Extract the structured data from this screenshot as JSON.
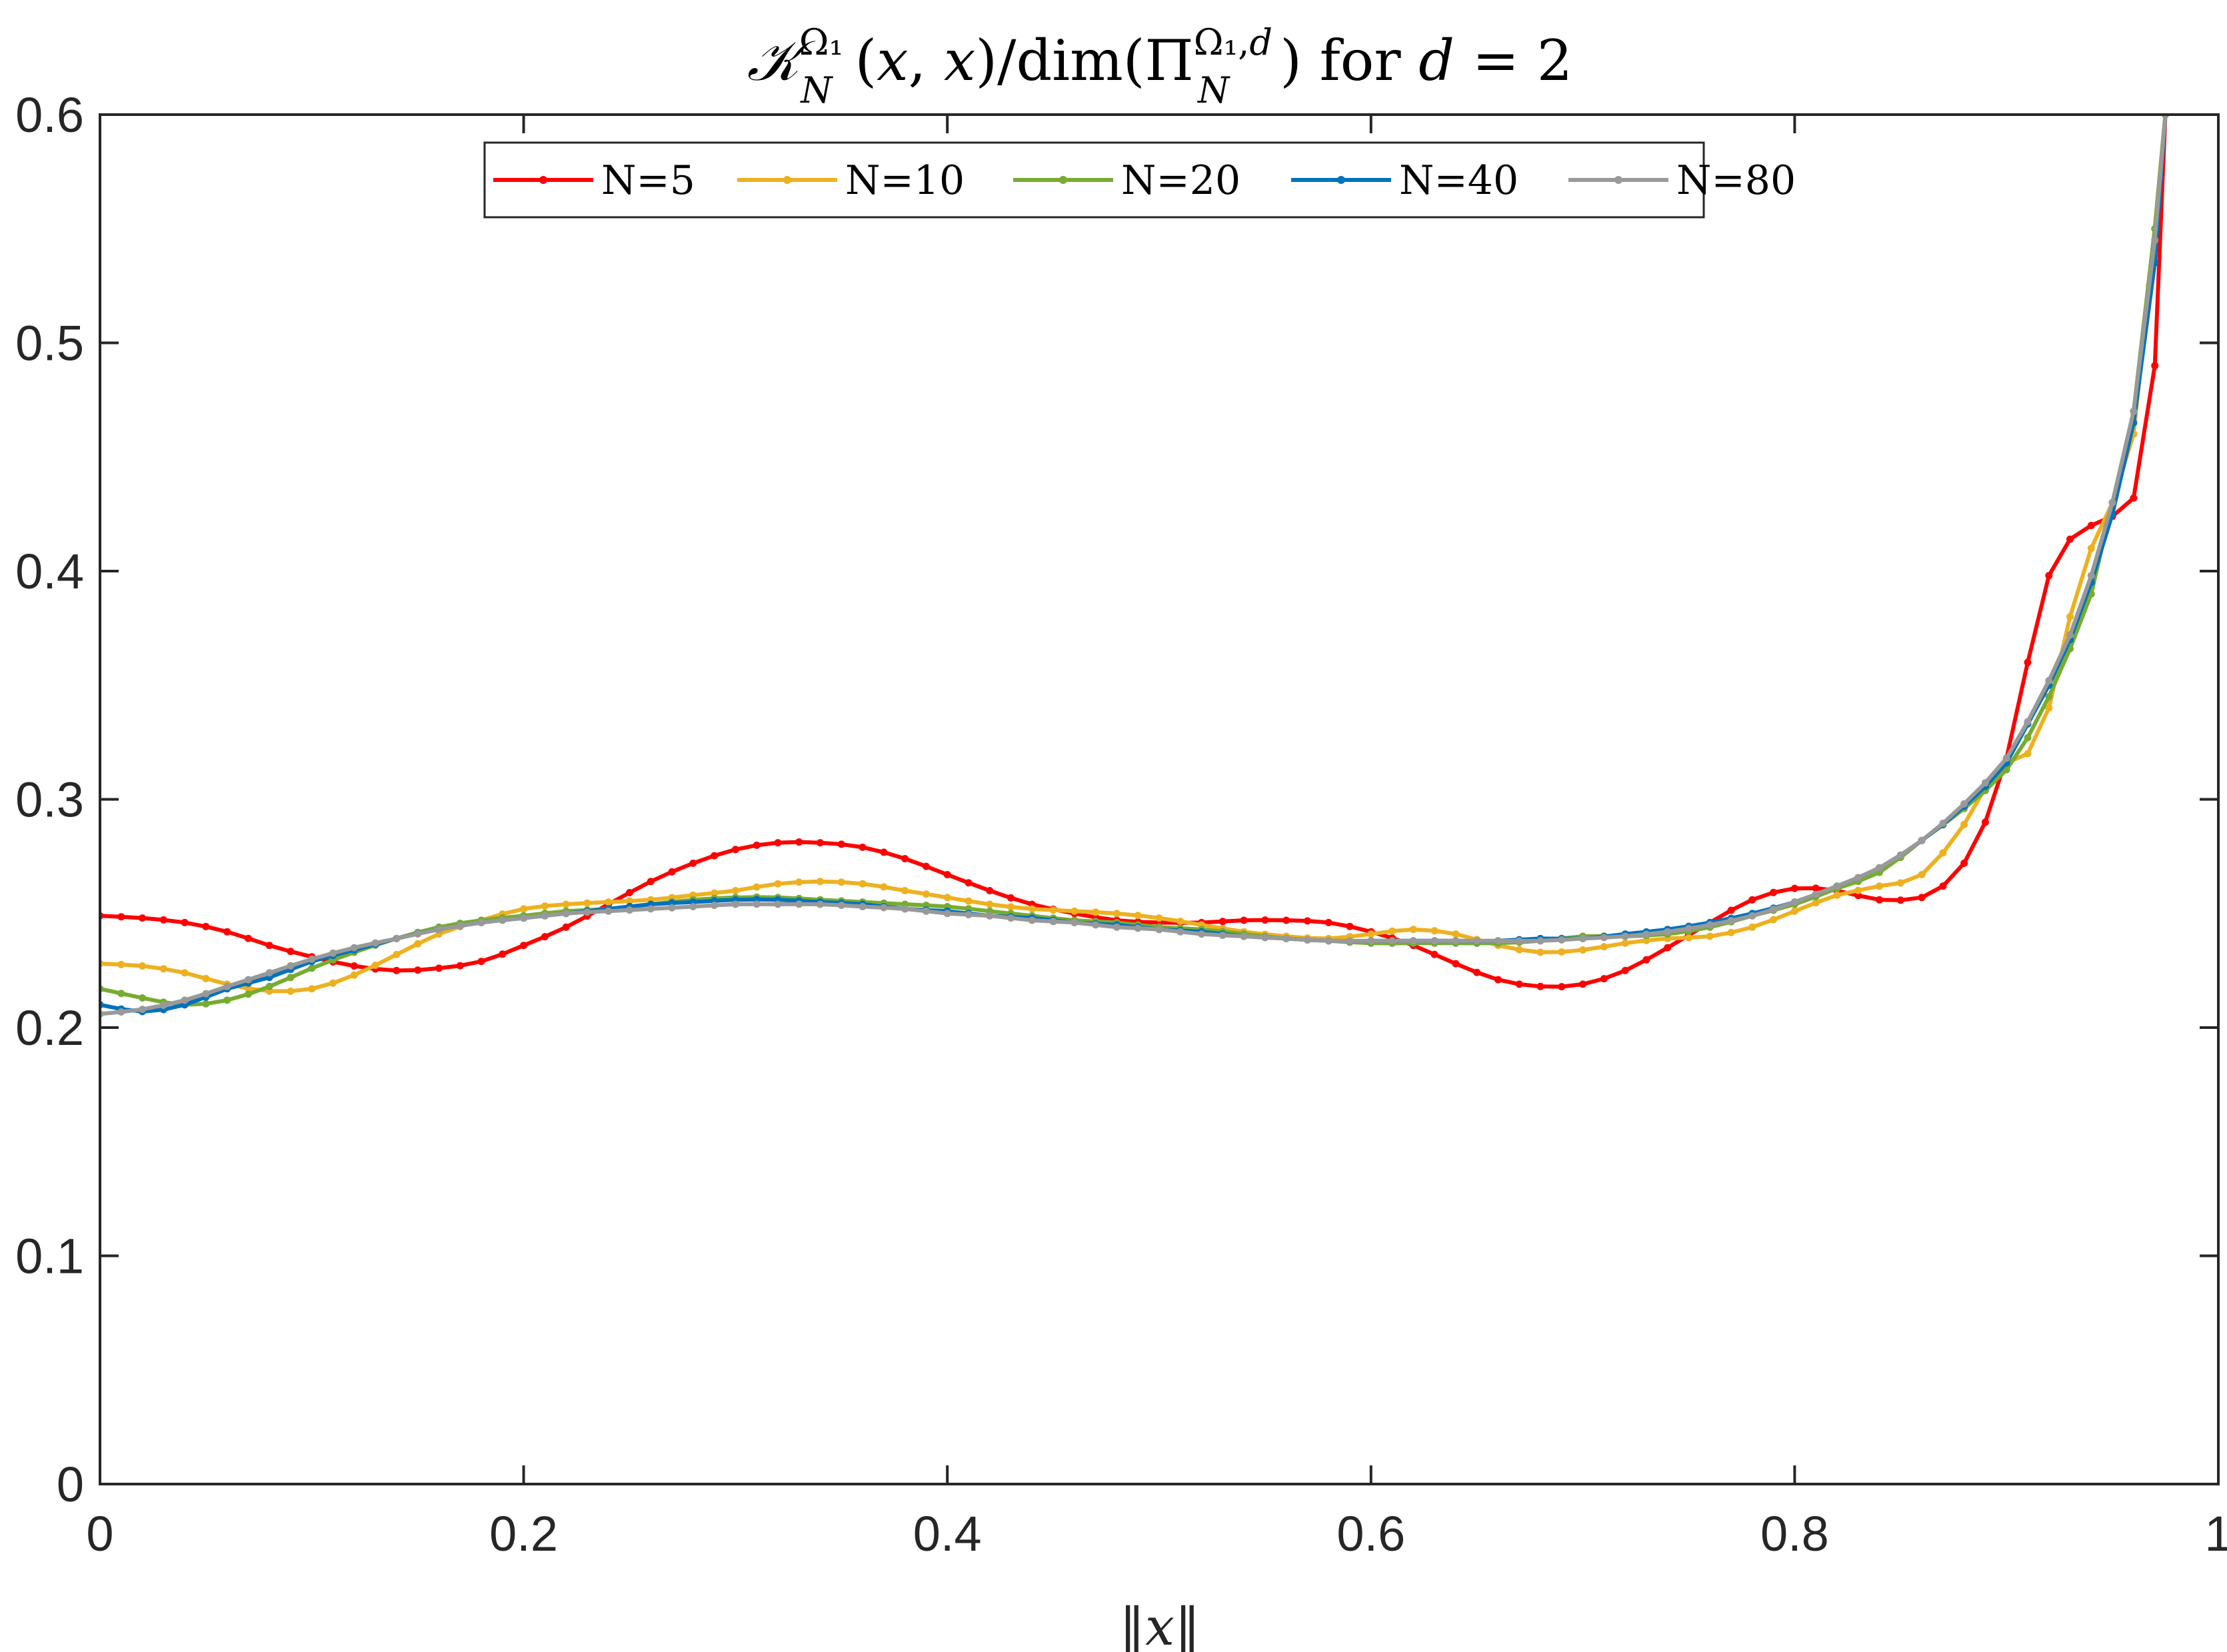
{
  "chart_data": {
    "type": "line",
    "title": "𝒦_N^{Ω₁}(x, x) / dim(Π_N^{Ω₁,d}) for d = 2",
    "xlabel": "‖x‖",
    "ylabel": "",
    "xlim": [
      0,
      1
    ],
    "ylim": [
      0,
      0.6
    ],
    "xticks": [
      0,
      0.2,
      0.4,
      0.6,
      0.8,
      1
    ],
    "xtick_labels": [
      "0",
      "0.2",
      "0.4",
      "0.6",
      "0.8",
      "1"
    ],
    "yticks": [
      0,
      0.1,
      0.2,
      0.3,
      0.4,
      0.5,
      0.6
    ],
    "ytick_labels": [
      "0",
      "0.1",
      "0.2",
      "0.3",
      "0.4",
      "0.5",
      "0.6"
    ],
    "grid": false,
    "legend": {
      "placement": "top-center",
      "orientation": "horizontal"
    },
    "series": [
      {
        "name": "N=5",
        "color": "#FF0000",
        "points": [
          [
            0,
            0.249
          ],
          [
            0.02,
            0.248
          ],
          [
            0.04,
            0.246
          ],
          [
            0.06,
            0.242
          ],
          [
            0.08,
            0.236
          ],
          [
            0.1,
            0.231
          ],
          [
            0.12,
            0.227
          ],
          [
            0.14,
            0.225
          ],
          [
            0.16,
            0.226
          ],
          [
            0.18,
            0.229
          ],
          [
            0.2,
            0.236
          ],
          [
            0.22,
            0.244
          ],
          [
            0.24,
            0.254
          ],
          [
            0.26,
            0.264
          ],
          [
            0.28,
            0.272
          ],
          [
            0.3,
            0.278
          ],
          [
            0.32,
            0.281
          ],
          [
            0.34,
            0.281
          ],
          [
            0.36,
            0.279
          ],
          [
            0.38,
            0.274
          ],
          [
            0.4,
            0.267
          ],
          [
            0.42,
            0.26
          ],
          [
            0.44,
            0.254
          ],
          [
            0.46,
            0.25
          ],
          [
            0.48,
            0.247
          ],
          [
            0.5,
            0.246
          ],
          [
            0.52,
            0.246
          ],
          [
            0.54,
            0.247
          ],
          [
            0.56,
            0.247
          ],
          [
            0.58,
            0.246
          ],
          [
            0.6,
            0.242
          ],
          [
            0.62,
            0.236
          ],
          [
            0.64,
            0.228
          ],
          [
            0.66,
            0.221
          ],
          [
            0.68,
            0.218
          ],
          [
            0.7,
            0.219
          ],
          [
            0.72,
            0.225
          ],
          [
            0.74,
            0.235
          ],
          [
            0.76,
            0.246
          ],
          [
            0.78,
            0.256
          ],
          [
            0.8,
            0.261
          ],
          [
            0.82,
            0.26
          ],
          [
            0.84,
            0.256
          ],
          [
            0.86,
            0.257
          ],
          [
            0.87,
            0.262
          ],
          [
            0.88,
            0.272
          ],
          [
            0.89,
            0.29
          ],
          [
            0.9,
            0.318
          ],
          [
            0.91,
            0.36
          ],
          [
            0.92,
            0.398
          ],
          [
            0.93,
            0.414
          ],
          [
            0.94,
            0.42
          ],
          [
            0.95,
            0.424
          ],
          [
            0.96,
            0.432
          ],
          [
            0.97,
            0.49
          ],
          [
            0.975,
            0.6
          ]
        ]
      },
      {
        "name": "N=10",
        "color": "#EDB120",
        "points": [
          [
            0,
            0.228
          ],
          [
            0.02,
            0.227
          ],
          [
            0.04,
            0.224
          ],
          [
            0.06,
            0.219
          ],
          [
            0.08,
            0.216
          ],
          [
            0.1,
            0.217
          ],
          [
            0.12,
            0.223
          ],
          [
            0.14,
            0.232
          ],
          [
            0.16,
            0.241
          ],
          [
            0.18,
            0.247
          ],
          [
            0.2,
            0.252
          ],
          [
            0.22,
            0.254
          ],
          [
            0.24,
            0.255
          ],
          [
            0.26,
            0.256
          ],
          [
            0.28,
            0.258
          ],
          [
            0.3,
            0.26
          ],
          [
            0.32,
            0.263
          ],
          [
            0.34,
            0.264
          ],
          [
            0.36,
            0.263
          ],
          [
            0.38,
            0.26
          ],
          [
            0.4,
            0.257
          ],
          [
            0.42,
            0.254
          ],
          [
            0.44,
            0.252
          ],
          [
            0.46,
            0.251
          ],
          [
            0.48,
            0.25
          ],
          [
            0.5,
            0.248
          ],
          [
            0.52,
            0.245
          ],
          [
            0.54,
            0.242
          ],
          [
            0.56,
            0.24
          ],
          [
            0.58,
            0.239
          ],
          [
            0.6,
            0.241
          ],
          [
            0.62,
            0.243
          ],
          [
            0.64,
            0.241
          ],
          [
            0.66,
            0.236
          ],
          [
            0.68,
            0.233
          ],
          [
            0.7,
            0.234
          ],
          [
            0.72,
            0.237
          ],
          [
            0.74,
            0.239
          ],
          [
            0.76,
            0.24
          ],
          [
            0.78,
            0.244
          ],
          [
            0.8,
            0.251
          ],
          [
            0.82,
            0.258
          ],
          [
            0.84,
            0.262
          ],
          [
            0.86,
            0.267
          ],
          [
            0.88,
            0.289
          ],
          [
            0.89,
            0.305
          ],
          [
            0.9,
            0.316
          ],
          [
            0.91,
            0.32
          ],
          [
            0.92,
            0.34
          ],
          [
            0.93,
            0.38
          ],
          [
            0.94,
            0.41
          ],
          [
            0.95,
            0.43
          ],
          [
            0.96,
            0.46
          ],
          [
            0.975,
            0.6
          ]
        ]
      },
      {
        "name": "N=20",
        "color": "#77AC30",
        "points": [
          [
            0,
            0.217
          ],
          [
            0.02,
            0.213
          ],
          [
            0.04,
            0.21
          ],
          [
            0.06,
            0.212
          ],
          [
            0.08,
            0.218
          ],
          [
            0.1,
            0.226
          ],
          [
            0.12,
            0.233
          ],
          [
            0.14,
            0.239
          ],
          [
            0.16,
            0.244
          ],
          [
            0.18,
            0.247
          ],
          [
            0.2,
            0.249
          ],
          [
            0.22,
            0.251
          ],
          [
            0.24,
            0.252
          ],
          [
            0.26,
            0.254
          ],
          [
            0.28,
            0.256
          ],
          [
            0.3,
            0.257
          ],
          [
            0.32,
            0.257
          ],
          [
            0.34,
            0.256
          ],
          [
            0.36,
            0.255
          ],
          [
            0.38,
            0.254
          ],
          [
            0.4,
            0.253
          ],
          [
            0.42,
            0.251
          ],
          [
            0.44,
            0.249
          ],
          [
            0.46,
            0.247
          ],
          [
            0.48,
            0.246
          ],
          [
            0.5,
            0.244
          ],
          [
            0.52,
            0.243
          ],
          [
            0.54,
            0.241
          ],
          [
            0.56,
            0.239
          ],
          [
            0.58,
            0.238
          ],
          [
            0.6,
            0.237
          ],
          [
            0.62,
            0.237
          ],
          [
            0.64,
            0.237
          ],
          [
            0.66,
            0.237
          ],
          [
            0.68,
            0.238
          ],
          [
            0.7,
            0.24
          ],
          [
            0.72,
            0.24
          ],
          [
            0.74,
            0.241
          ],
          [
            0.76,
            0.244
          ],
          [
            0.78,
            0.249
          ],
          [
            0.8,
            0.254
          ],
          [
            0.82,
            0.261
          ],
          [
            0.84,
            0.268
          ],
          [
            0.86,
            0.282
          ],
          [
            0.88,
            0.296
          ],
          [
            0.9,
            0.313
          ],
          [
            0.91,
            0.327
          ],
          [
            0.92,
            0.345
          ],
          [
            0.93,
            0.366
          ],
          [
            0.94,
            0.39
          ],
          [
            0.95,
            0.43
          ],
          [
            0.96,
            0.47
          ],
          [
            0.97,
            0.55
          ],
          [
            0.975,
            0.6
          ]
        ]
      },
      {
        "name": "N=40",
        "color": "#0072BD",
        "points": [
          [
            0,
            0.21
          ],
          [
            0.02,
            0.207
          ],
          [
            0.04,
            0.21
          ],
          [
            0.06,
            0.217
          ],
          [
            0.08,
            0.222
          ],
          [
            0.1,
            0.229
          ],
          [
            0.12,
            0.234
          ],
          [
            0.14,
            0.239
          ],
          [
            0.16,
            0.243
          ],
          [
            0.18,
            0.246
          ],
          [
            0.2,
            0.248
          ],
          [
            0.22,
            0.25
          ],
          [
            0.24,
            0.252
          ],
          [
            0.26,
            0.254
          ],
          [
            0.28,
            0.255
          ],
          [
            0.3,
            0.256
          ],
          [
            0.32,
            0.256
          ],
          [
            0.34,
            0.255
          ],
          [
            0.36,
            0.254
          ],
          [
            0.38,
            0.252
          ],
          [
            0.4,
            0.251
          ],
          [
            0.42,
            0.249
          ],
          [
            0.44,
            0.248
          ],
          [
            0.46,
            0.246
          ],
          [
            0.48,
            0.245
          ],
          [
            0.5,
            0.243
          ],
          [
            0.52,
            0.242
          ],
          [
            0.54,
            0.24
          ],
          [
            0.56,
            0.239
          ],
          [
            0.58,
            0.238
          ],
          [
            0.6,
            0.238
          ],
          [
            0.62,
            0.238
          ],
          [
            0.64,
            0.238
          ],
          [
            0.66,
            0.238
          ],
          [
            0.68,
            0.239
          ],
          [
            0.7,
            0.239
          ],
          [
            0.72,
            0.241
          ],
          [
            0.74,
            0.243
          ],
          [
            0.76,
            0.246
          ],
          [
            0.78,
            0.25
          ],
          [
            0.8,
            0.255
          ],
          [
            0.82,
            0.262
          ],
          [
            0.84,
            0.27
          ],
          [
            0.86,
            0.282
          ],
          [
            0.88,
            0.297
          ],
          [
            0.9,
            0.316
          ],
          [
            0.91,
            0.333
          ],
          [
            0.92,
            0.35
          ],
          [
            0.93,
            0.37
          ],
          [
            0.94,
            0.395
          ],
          [
            0.95,
            0.425
          ],
          [
            0.96,
            0.465
          ],
          [
            0.97,
            0.535
          ],
          [
            0.975,
            0.6
          ]
        ]
      },
      {
        "name": "N=80",
        "color": "#999999",
        "points": [
          [
            0,
            0.206
          ],
          [
            0.02,
            0.208
          ],
          [
            0.04,
            0.212
          ],
          [
            0.06,
            0.218
          ],
          [
            0.08,
            0.224
          ],
          [
            0.1,
            0.23
          ],
          [
            0.12,
            0.235
          ],
          [
            0.14,
            0.239
          ],
          [
            0.16,
            0.243
          ],
          [
            0.18,
            0.246
          ],
          [
            0.2,
            0.248
          ],
          [
            0.22,
            0.25
          ],
          [
            0.24,
            0.251
          ],
          [
            0.26,
            0.252
          ],
          [
            0.28,
            0.253
          ],
          [
            0.3,
            0.254
          ],
          [
            0.32,
            0.254
          ],
          [
            0.34,
            0.254
          ],
          [
            0.36,
            0.253
          ],
          [
            0.38,
            0.252
          ],
          [
            0.4,
            0.25
          ],
          [
            0.42,
            0.249
          ],
          [
            0.44,
            0.247
          ],
          [
            0.46,
            0.246
          ],
          [
            0.48,
            0.244
          ],
          [
            0.5,
            0.243
          ],
          [
            0.52,
            0.241
          ],
          [
            0.54,
            0.24
          ],
          [
            0.56,
            0.239
          ],
          [
            0.58,
            0.238
          ],
          [
            0.6,
            0.238
          ],
          [
            0.62,
            0.238
          ],
          [
            0.64,
            0.238
          ],
          [
            0.66,
            0.238
          ],
          [
            0.68,
            0.238
          ],
          [
            0.7,
            0.239
          ],
          [
            0.72,
            0.24
          ],
          [
            0.74,
            0.242
          ],
          [
            0.76,
            0.245
          ],
          [
            0.78,
            0.249
          ],
          [
            0.8,
            0.255
          ],
          [
            0.82,
            0.262
          ],
          [
            0.84,
            0.27
          ],
          [
            0.86,
            0.282
          ],
          [
            0.88,
            0.298
          ],
          [
            0.9,
            0.318
          ],
          [
            0.91,
            0.334
          ],
          [
            0.92,
            0.352
          ],
          [
            0.93,
            0.372
          ],
          [
            0.94,
            0.398
          ],
          [
            0.95,
            0.43
          ],
          [
            0.96,
            0.47
          ],
          [
            0.97,
            0.545
          ],
          [
            0.975,
            0.6
          ]
        ]
      }
    ]
  }
}
